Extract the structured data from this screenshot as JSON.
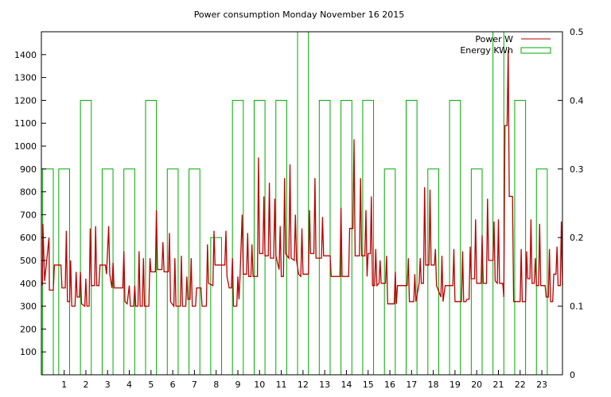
{
  "chart_data": {
    "type": "line",
    "title": "Power consumption Monday November 16 2015",
    "x_ticks": [
      "1",
      "2",
      "3",
      "4",
      "5",
      "6",
      "7",
      "8",
      "9",
      "10",
      "11",
      "12",
      "13",
      "14",
      "15",
      "16",
      "17",
      "18",
      "19",
      "20",
      "21",
      "22",
      "23"
    ],
    "xlim": [
      -0.05,
      23.95
    ],
    "y_left": {
      "ticks": [
        100,
        200,
        300,
        400,
        500,
        600,
        700,
        800,
        900,
        1000,
        1100,
        1200,
        1300,
        1400
      ],
      "lim": [
        0,
        1500
      ]
    },
    "y_right": {
      "ticks": [
        "0",
        "0.1",
        "0.2",
        "0.3",
        "0.4",
        "0.5"
      ],
      "tick_values": [
        0,
        0.1,
        0.2,
        0.3,
        0.4,
        0.5
      ],
      "lim": [
        0,
        0.5
      ]
    },
    "legend_position": "top-right",
    "colors": {
      "power": "#bb0000",
      "energy": "#00aa00"
    },
    "series": [
      {
        "name": "Power W",
        "axis": "left",
        "style": "spiky-step-line",
        "points": [
          [
            0.0,
            390
          ],
          [
            0.02,
            660
          ],
          [
            0.1,
            410
          ],
          [
            0.3,
            600
          ],
          [
            0.32,
            370
          ],
          [
            0.5,
            370
          ],
          [
            0.55,
            480
          ],
          [
            0.85,
            480
          ],
          [
            0.9,
            380
          ],
          [
            1.05,
            380
          ],
          [
            1.1,
            630
          ],
          [
            1.15,
            320
          ],
          [
            1.25,
            320
          ],
          [
            1.3,
            500
          ],
          [
            1.35,
            300
          ],
          [
            1.5,
            300
          ],
          [
            1.55,
            450
          ],
          [
            1.6,
            340
          ],
          [
            1.7,
            340
          ],
          [
            1.75,
            450
          ],
          [
            1.8,
            310
          ],
          [
            1.95,
            300
          ],
          [
            2.0,
            420
          ],
          [
            2.05,
            300
          ],
          [
            2.15,
            300
          ],
          [
            2.2,
            640
          ],
          [
            2.25,
            390
          ],
          [
            2.4,
            390
          ],
          [
            2.45,
            650
          ],
          [
            2.5,
            390
          ],
          [
            2.6,
            390
          ],
          [
            2.65,
            480
          ],
          [
            2.9,
            480
          ],
          [
            2.95,
            440
          ],
          [
            3.05,
            650
          ],
          [
            3.1,
            440
          ],
          [
            3.2,
            380
          ],
          [
            3.25,
            490
          ],
          [
            3.3,
            380
          ],
          [
            3.7,
            380
          ],
          [
            3.75,
            540
          ],
          [
            3.8,
            320
          ],
          [
            3.9,
            310
          ],
          [
            4.0,
            390
          ],
          [
            4.05,
            300
          ],
          [
            4.2,
            300
          ],
          [
            4.25,
            390
          ],
          [
            4.3,
            300
          ],
          [
            4.4,
            300
          ],
          [
            4.45,
            540
          ],
          [
            4.5,
            300
          ],
          [
            4.6,
            300
          ],
          [
            4.65,
            510
          ],
          [
            4.7,
            300
          ],
          [
            4.9,
            300
          ],
          [
            4.95,
            510
          ],
          [
            5.0,
            450
          ],
          [
            5.2,
            450
          ],
          [
            5.25,
            720
          ],
          [
            5.3,
            460
          ],
          [
            5.5,
            460
          ],
          [
            5.55,
            580
          ],
          [
            5.6,
            450
          ],
          [
            5.8,
            450
          ],
          [
            5.85,
            620
          ],
          [
            5.9,
            320
          ],
          [
            6.05,
            300
          ],
          [
            6.1,
            510
          ],
          [
            6.15,
            300
          ],
          [
            6.35,
            300
          ],
          [
            6.4,
            520
          ],
          [
            6.45,
            300
          ],
          [
            6.6,
            300
          ],
          [
            6.65,
            430
          ],
          [
            6.7,
            330
          ],
          [
            6.8,
            330
          ],
          [
            6.85,
            510
          ],
          [
            6.9,
            300
          ],
          [
            7.05,
            300
          ],
          [
            7.1,
            380
          ],
          [
            7.3,
            380
          ],
          [
            7.35,
            300
          ],
          [
            7.55,
            300
          ],
          [
            7.6,
            570
          ],
          [
            7.65,
            400
          ],
          [
            7.85,
            390
          ],
          [
            7.9,
            630
          ],
          [
            7.95,
            480
          ],
          [
            8.4,
            480
          ],
          [
            8.45,
            630
          ],
          [
            8.5,
            430
          ],
          [
            8.6,
            380
          ],
          [
            8.7,
            380
          ],
          [
            8.75,
            510
          ],
          [
            8.8,
            300
          ],
          [
            8.95,
            300
          ],
          [
            9.0,
            430
          ],
          [
            9.05,
            330
          ],
          [
            9.1,
            430
          ],
          [
            9.2,
            700
          ],
          [
            9.25,
            440
          ],
          [
            9.4,
            440
          ],
          [
            9.45,
            620
          ],
          [
            9.5,
            430
          ],
          [
            9.6,
            430
          ],
          [
            9.65,
            570
          ],
          [
            9.7,
            430
          ],
          [
            9.9,
            430
          ],
          [
            9.95,
            950
          ],
          [
            10.0,
            530
          ],
          [
            10.15,
            530
          ],
          [
            10.2,
            780
          ],
          [
            10.25,
            520
          ],
          [
            10.4,
            520
          ],
          [
            10.45,
            840
          ],
          [
            10.5,
            510
          ],
          [
            10.65,
            510
          ],
          [
            10.7,
            770
          ],
          [
            10.75,
            520
          ],
          [
            10.9,
            460
          ],
          [
            10.95,
            650
          ],
          [
            11.0,
            430
          ],
          [
            11.1,
            430
          ],
          [
            11.15,
            860
          ],
          [
            11.2,
            530
          ],
          [
            11.35,
            510
          ],
          [
            11.4,
            920
          ],
          [
            11.45,
            510
          ],
          [
            11.6,
            500
          ],
          [
            11.65,
            700
          ],
          [
            11.7,
            500
          ],
          [
            11.8,
            440
          ],
          [
            11.9,
            430
          ],
          [
            11.95,
            640
          ],
          [
            12.0,
            440
          ],
          [
            12.25,
            440
          ],
          [
            12.3,
            720
          ],
          [
            12.35,
            530
          ],
          [
            12.5,
            530
          ],
          [
            12.55,
            860
          ],
          [
            12.6,
            510
          ],
          [
            12.85,
            510
          ],
          [
            12.9,
            690
          ],
          [
            12.95,
            520
          ],
          [
            13.25,
            520
          ],
          [
            13.3,
            430
          ],
          [
            13.7,
            430
          ],
          [
            13.75,
            730
          ],
          [
            13.8,
            430
          ],
          [
            14.1,
            430
          ],
          [
            14.15,
            640
          ],
          [
            14.3,
            640
          ],
          [
            14.35,
            1030
          ],
          [
            14.4,
            520
          ],
          [
            14.6,
            520
          ],
          [
            14.65,
            860
          ],
          [
            14.7,
            520
          ],
          [
            14.85,
            520
          ],
          [
            14.9,
            720
          ],
          [
            14.95,
            430
          ],
          [
            15.0,
            530
          ],
          [
            15.1,
            530
          ],
          [
            15.15,
            780
          ],
          [
            15.2,
            390
          ],
          [
            15.3,
            390
          ],
          [
            15.35,
            550
          ],
          [
            15.4,
            390
          ],
          [
            15.5,
            400
          ],
          [
            15.55,
            500
          ],
          [
            15.6,
            400
          ],
          [
            15.8,
            400
          ],
          [
            15.85,
            520
          ],
          [
            15.9,
            310
          ],
          [
            16.2,
            310
          ],
          [
            16.25,
            450
          ],
          [
            16.3,
            310
          ],
          [
            16.35,
            390
          ],
          [
            16.8,
            390
          ],
          [
            16.85,
            510
          ],
          [
            16.9,
            320
          ],
          [
            17.1,
            320
          ],
          [
            17.15,
            440
          ],
          [
            17.2,
            320
          ],
          [
            17.35,
            400
          ],
          [
            17.4,
            510
          ],
          [
            17.45,
            400
          ],
          [
            17.55,
            400
          ],
          [
            17.6,
            820
          ],
          [
            17.65,
            480
          ],
          [
            17.8,
            480
          ],
          [
            17.85,
            810
          ],
          [
            17.9,
            480
          ],
          [
            18.05,
            480
          ],
          [
            18.1,
            550
          ],
          [
            18.15,
            390
          ],
          [
            18.35,
            340
          ],
          [
            18.4,
            520
          ],
          [
            18.45,
            320
          ],
          [
            18.55,
            390
          ],
          [
            18.7,
            390
          ],
          [
            18.9,
            390
          ],
          [
            18.95,
            550
          ],
          [
            19.0,
            320
          ],
          [
            19.3,
            320
          ],
          [
            19.35,
            540
          ],
          [
            19.4,
            320
          ],
          [
            19.5,
            320
          ],
          [
            19.55,
            330
          ],
          [
            19.65,
            330
          ],
          [
            19.7,
            560
          ],
          [
            19.75,
            420
          ],
          [
            19.9,
            420
          ],
          [
            19.95,
            680
          ],
          [
            20.0,
            400
          ],
          [
            20.2,
            400
          ],
          [
            20.25,
            610
          ],
          [
            20.3,
            400
          ],
          [
            20.45,
            400
          ],
          [
            20.5,
            770
          ],
          [
            20.55,
            500
          ],
          [
            20.75,
            500
          ],
          [
            20.8,
            670
          ],
          [
            20.85,
            410
          ],
          [
            20.95,
            400
          ],
          [
            21.0,
            680
          ],
          [
            21.05,
            400
          ],
          [
            21.2,
            400
          ],
          [
            21.25,
            340
          ],
          [
            21.3,
            1090
          ],
          [
            21.4,
            1090
          ],
          [
            21.45,
            1420
          ],
          [
            21.5,
            780
          ],
          [
            21.65,
            780
          ],
          [
            21.7,
            320
          ],
          [
            22.0,
            320
          ],
          [
            22.05,
            550
          ],
          [
            22.1,
            320
          ],
          [
            22.25,
            320
          ],
          [
            22.3,
            540
          ],
          [
            22.35,
            420
          ],
          [
            22.45,
            420
          ],
          [
            22.5,
            680
          ],
          [
            22.55,
            400
          ],
          [
            22.65,
            400
          ],
          [
            22.7,
            510
          ],
          [
            22.75,
            390
          ],
          [
            22.85,
            390
          ],
          [
            22.9,
            660
          ],
          [
            22.95,
            390
          ],
          [
            23.15,
            390
          ],
          [
            23.2,
            340
          ],
          [
            23.3,
            340
          ],
          [
            23.35,
            550
          ],
          [
            23.4,
            320
          ],
          [
            23.5,
            320
          ],
          [
            23.55,
            440
          ],
          [
            23.65,
            440
          ],
          [
            23.7,
            560
          ],
          [
            23.75,
            390
          ],
          [
            23.85,
            390
          ],
          [
            23.9,
            670
          ],
          [
            23.95,
            390
          ]
        ]
      },
      {
        "name": "Energy KWh",
        "axis": "right",
        "style": "open-bars",
        "bars": [
          [
            0.0,
            0.3
          ],
          [
            0.75,
            0.3
          ],
          [
            1.75,
            0.4
          ],
          [
            2.75,
            0.3
          ],
          [
            3.75,
            0.3
          ],
          [
            4.75,
            0.4
          ],
          [
            5.75,
            0.3
          ],
          [
            6.75,
            0.3
          ],
          [
            7.75,
            0.2
          ],
          [
            8.75,
            0.4
          ],
          [
            9.75,
            0.4
          ],
          [
            10.75,
            0.4
          ],
          [
            11.75,
            0.5
          ],
          [
            12.75,
            0.4
          ],
          [
            13.75,
            0.4
          ],
          [
            14.75,
            0.4
          ],
          [
            15.75,
            0.3
          ],
          [
            16.75,
            0.4
          ],
          [
            17.75,
            0.3
          ],
          [
            18.75,
            0.4
          ],
          [
            19.75,
            0.3
          ],
          [
            20.75,
            0.5
          ],
          [
            21.75,
            0.4
          ],
          [
            22.75,
            0.3
          ]
        ],
        "bar_width": 0.5
      }
    ]
  }
}
